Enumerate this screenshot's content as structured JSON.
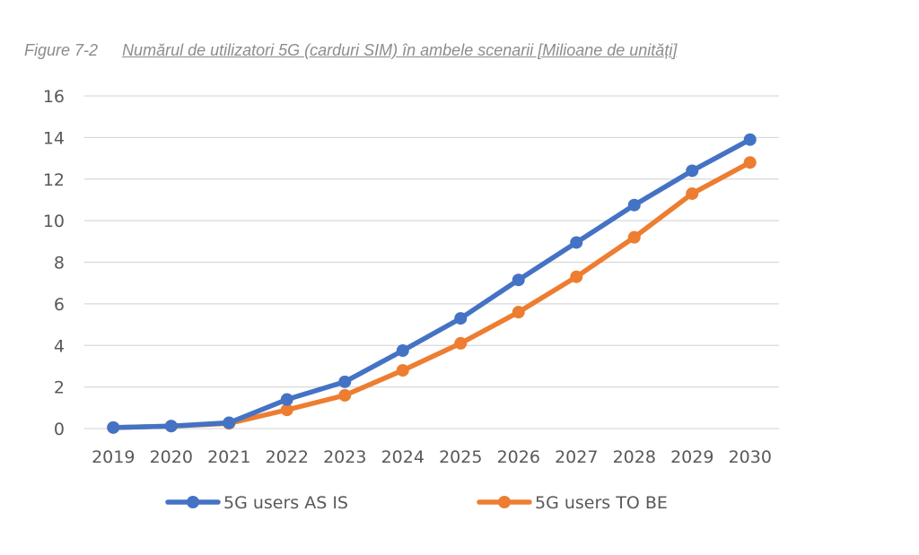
{
  "caption": {
    "figure_number": "Figure 7-2",
    "title": "Numărul de utilizatori 5G (carduri SIM) în ambele scenarii [Milioane de unități]"
  },
  "chart_data": {
    "type": "line",
    "title": "Numărul de utilizatori 5G (carduri SIM) în ambele scenarii [Milioane de unități]",
    "xlabel": "",
    "ylabel": "",
    "categories": [
      "2019",
      "2020",
      "2021",
      "2022",
      "2023",
      "2024",
      "2025",
      "2026",
      "2027",
      "2028",
      "2029",
      "2030"
    ],
    "yticks": [
      "0",
      "2",
      "4",
      "6",
      "8",
      "10",
      "12",
      "14",
      "16"
    ],
    "ylim": [
      0,
      16
    ],
    "grid": true,
    "legend_position": "bottom",
    "series": [
      {
        "name": "5G users AS IS",
        "color": "#4472c4",
        "values": [
          0.05,
          0.12,
          0.28,
          1.4,
          2.25,
          3.75,
          5.3,
          7.15,
          8.95,
          10.75,
          12.4,
          13.9
        ]
      },
      {
        "name": "5G users TO BE",
        "color": "#ed7d31",
        "values": [
          0.05,
          0.12,
          0.25,
          0.9,
          1.6,
          2.8,
          4.1,
          5.6,
          7.3,
          9.2,
          11.3,
          12.8
        ]
      }
    ]
  }
}
